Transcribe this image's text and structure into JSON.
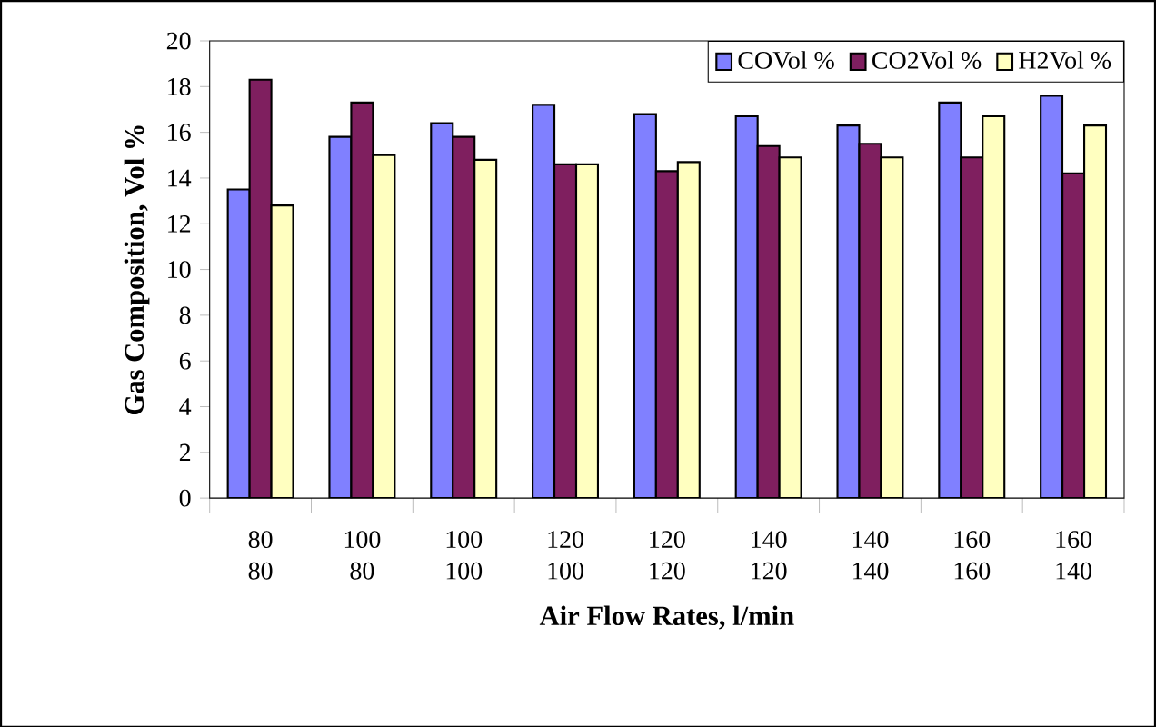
{
  "chart_data": {
    "type": "bar",
    "xlabel": "Air Flow Rates, l/min",
    "ylabel": "Gas Composition, Vol %",
    "categories": [
      "80 80",
      "100 80",
      "100 100",
      "120 100",
      "120 120",
      "140 120",
      "140 140",
      "160 160",
      "160 140"
    ],
    "series": [
      {
        "name": "COVol %",
        "color": "#8080ff",
        "values": [
          13.5,
          15.8,
          16.4,
          17.2,
          16.8,
          16.7,
          16.3,
          17.3,
          17.6
        ]
      },
      {
        "name": "CO2Vol %",
        "color": "#7f1f5f",
        "values": [
          18.3,
          17.3,
          15.8,
          14.6,
          14.3,
          15.4,
          15.5,
          14.9,
          14.2
        ]
      },
      {
        "name": "H2Vol %",
        "color": "#ffffc0",
        "values": [
          12.8,
          15.0,
          14.8,
          14.6,
          14.7,
          14.9,
          14.9,
          16.7,
          16.3
        ]
      }
    ],
    "ylim": [
      0,
      20
    ],
    "yticks": [
      0,
      2,
      4,
      6,
      8,
      10,
      12,
      14,
      16,
      18,
      20
    ],
    "grid": false,
    "legend": "top right"
  }
}
